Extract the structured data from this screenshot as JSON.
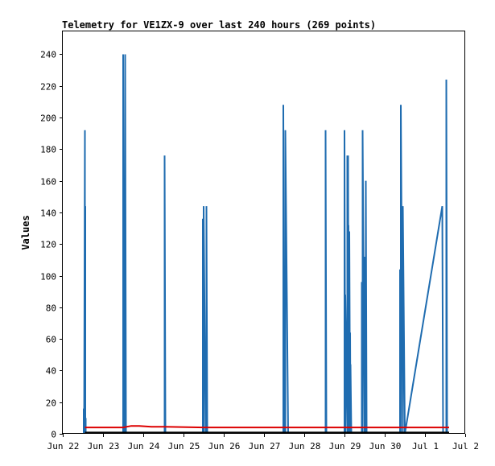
{
  "chart_data": {
    "type": "line",
    "title": "Telemetry for VE1ZX-9 over last 240 hours (269 points)",
    "xlabel": "",
    "ylabel": "Values",
    "ylim": [
      0,
      255
    ],
    "xlim": [
      0,
      10
    ],
    "grid": false,
    "x_ticks": [
      {
        "pos": 0,
        "label": "Jun 22"
      },
      {
        "pos": 1,
        "label": "Jun 23"
      },
      {
        "pos": 2,
        "label": "Jun 24"
      },
      {
        "pos": 3,
        "label": "Jun 25"
      },
      {
        "pos": 4,
        "label": "Jun 26"
      },
      {
        "pos": 5,
        "label": "Jun 27"
      },
      {
        "pos": 6,
        "label": "Jun 28"
      },
      {
        "pos": 7,
        "label": "Jun 29"
      },
      {
        "pos": 8,
        "label": "Jun 30"
      },
      {
        "pos": 9,
        "label": "Jul 1"
      },
      {
        "pos": 10,
        "label": "Jul 2"
      }
    ],
    "y_ticks": [
      0,
      20,
      40,
      60,
      80,
      100,
      120,
      140,
      160,
      180,
      200,
      220,
      240
    ],
    "series": [
      {
        "color": "#1f6cb0",
        "x": [
          0.52,
          0.52,
          0.52,
          0.53,
          0.53,
          0.55,
          0.55,
          0.56,
          0.56,
          0.57,
          0.57,
          0.58,
          1.5,
          1.5,
          1.53,
          1.53,
          1.55,
          1.55,
          1.57,
          1.57,
          2.53,
          2.53,
          2.55,
          3.48,
          3.48,
          3.5,
          3.5,
          3.55,
          3.55,
          3.57,
          3.57,
          3.59,
          5.48,
          5.48,
          5.5,
          5.5,
          5.53,
          5.53,
          5.6,
          5.6,
          5.61,
          6.53,
          6.53,
          6.55,
          7.0,
          7.0,
          7.02,
          7.02,
          7.07,
          7.07,
          7.09,
          7.09,
          7.1,
          7.1,
          7.12,
          7.12,
          7.14,
          7.14,
          7.15,
          7.15,
          7.17,
          7.17,
          7.19,
          7.43,
          7.43,
          7.45,
          7.45,
          7.5,
          7.5,
          7.53,
          7.53,
          7.55,
          8.38,
          8.38,
          8.4,
          8.4,
          8.45,
          8.45,
          8.5,
          8.5,
          9.43,
          9.45,
          9.45,
          9.53,
          9.53,
          9.55
        ],
        "y": [
          0,
          16,
          0,
          8,
          0,
          192,
          0,
          144,
          0,
          10,
          0,
          0,
          0,
          240,
          0,
          32,
          0,
          240,
          0,
          0,
          0,
          176,
          0,
          0,
          136,
          0,
          144,
          0,
          16,
          0,
          144,
          0,
          0,
          208,
          0,
          56,
          0,
          192,
          0,
          0,
          0,
          0,
          192,
          0,
          0,
          192,
          0,
          88,
          0,
          176,
          0,
          176,
          0,
          132,
          0,
          128,
          0,
          64,
          0,
          44,
          0,
          0,
          0,
          0,
          96,
          0,
          192,
          0,
          112,
          0,
          160,
          0,
          0,
          104,
          0,
          208,
          0,
          144,
          0,
          0,
          144,
          0,
          0,
          0,
          224,
          0
        ]
      },
      {
        "color": "#dd0000",
        "x": [
          0.55,
          1.5,
          1.7,
          1.9,
          2.2,
          2.53,
          3.5,
          9.6
        ],
        "y": [
          4,
          4,
          5,
          5,
          4.5,
          4.5,
          4,
          4
        ]
      },
      {
        "color": "#000000",
        "x": [
          0.55,
          9.6
        ],
        "y": [
          0.8,
          0.8
        ]
      }
    ]
  }
}
